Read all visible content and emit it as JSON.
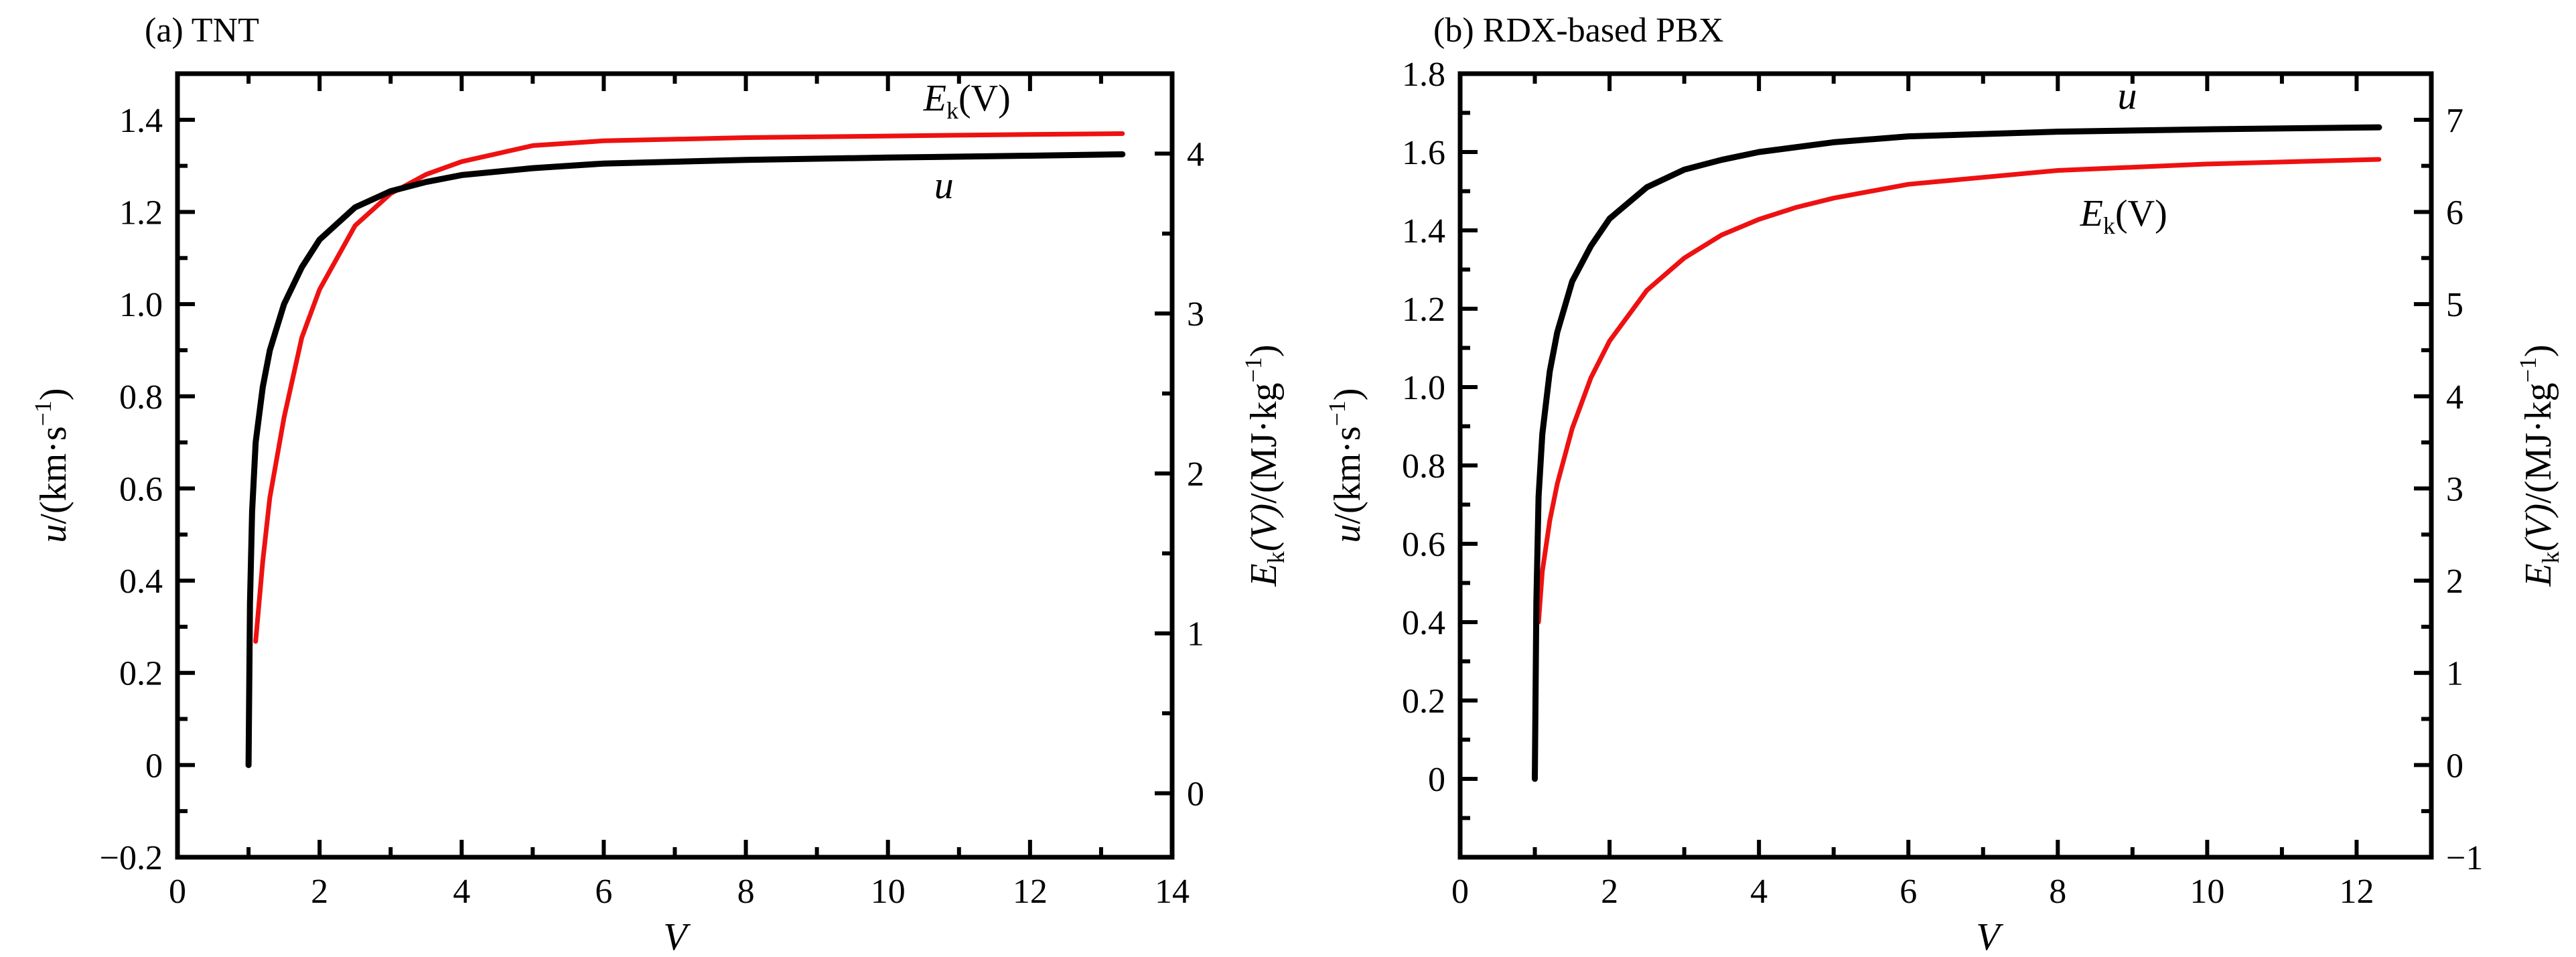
{
  "chart_data": [
    {
      "type": "line",
      "panel_label": "(a) TNT",
      "xlabel": "V",
      "y_left_label": {
        "main": "u",
        "rest": "/(km·s",
        "sup": "−1",
        "close": ")"
      },
      "y_right_label": {
        "main": "E",
        "sub": "k",
        "mid": "(V)",
        "rest": "/(MJ·kg",
        "sup": "−1",
        "close": ")"
      },
      "xlim": [
        0,
        14
      ],
      "ylim_left": [
        -0.2,
        1.5
      ],
      "ylim_right": [
        -0.4,
        4.5
      ],
      "x_ticks": [
        0,
        2,
        4,
        6,
        8,
        10,
        12,
        14
      ],
      "x_tick_labels": [
        "0",
        "2",
        "4",
        "6",
        "8",
        "10",
        "12",
        "14"
      ],
      "y_left_ticks": [
        -0.2,
        0,
        0.2,
        0.4,
        0.6,
        0.8,
        1.0,
        1.2,
        1.4
      ],
      "y_left_tick_labels": [
        "−0.2",
        "0",
        "0.2",
        "0.4",
        "0.6",
        "0.8",
        "1.0",
        "1.2",
        "1.4"
      ],
      "y_right_ticks": [
        0,
        1,
        2,
        3,
        4
      ],
      "y_right_tick_labels": [
        "0",
        "1",
        "2",
        "3",
        "4"
      ],
      "series": [
        {
          "name": "u",
          "axis": "left",
          "color": "#000000",
          "x": [
            1.0,
            1.02,
            1.05,
            1.1,
            1.2,
            1.3,
            1.5,
            1.75,
            2.0,
            2.5,
            3.0,
            3.5,
            4.0,
            5.0,
            6.0,
            8.0,
            10.0,
            12.0,
            13.3
          ],
          "y": [
            0.0,
            0.35,
            0.55,
            0.7,
            0.82,
            0.9,
            1.0,
            1.08,
            1.14,
            1.21,
            1.245,
            1.265,
            1.28,
            1.295,
            1.305,
            1.313,
            1.318,
            1.322,
            1.325
          ]
        },
        {
          "name": "Ek(V)",
          "axis": "right",
          "color": "#ee1111",
          "x": [
            1.1,
            1.2,
            1.3,
            1.5,
            1.75,
            2.0,
            2.5,
            3.0,
            3.5,
            4.0,
            4.5,
            5.0,
            6.0,
            8.0,
            10.0,
            12.0,
            13.3
          ],
          "y": [
            0.95,
            1.45,
            1.85,
            2.35,
            2.85,
            3.15,
            3.55,
            3.75,
            3.87,
            3.95,
            4.0,
            4.05,
            4.08,
            4.1,
            4.11,
            4.12,
            4.125
          ]
        }
      ],
      "annotations": [
        {
          "main": "E",
          "sub": "k",
          "rest": "(V)",
          "at": [
            10.5,
            4.27
          ],
          "axis": "right"
        },
        {
          "main": "u",
          "at": [
            10.65,
            1.23
          ],
          "axis": "left"
        }
      ]
    },
    {
      "type": "line",
      "panel_label": "(b) RDX-based PBX",
      "xlabel": "V",
      "y_left_label": {
        "main": "u",
        "rest": "/(km·s",
        "sup": "−1",
        "close": ")"
      },
      "y_right_label": {
        "main": "E",
        "sub": "k",
        "mid": "(V)",
        "rest": "/(MJ·kg",
        "sup": "−1",
        "close": ")"
      },
      "xlim": [
        0,
        13
      ],
      "ylim_left": [
        -0.2,
        1.8
      ],
      "ylim_right": [
        -1,
        7.5
      ],
      "x_ticks": [
        0,
        2,
        4,
        6,
        8,
        10,
        12
      ],
      "x_tick_labels": [
        "0",
        "2",
        "4",
        "6",
        "8",
        "10",
        "12"
      ],
      "y_left_ticks": [
        0,
        0.2,
        0.4,
        0.6,
        0.8,
        1.0,
        1.2,
        1.4,
        1.6,
        1.8
      ],
      "y_left_tick_labels": [
        "0",
        "0.2",
        "0.4",
        "0.6",
        "0.8",
        "1.0",
        "1.2",
        "1.4",
        "1.6",
        "1.8"
      ],
      "y_right_ticks": [
        -1,
        0,
        1,
        2,
        3,
        4,
        5,
        6,
        7
      ],
      "y_right_tick_labels": [
        "−1",
        "0",
        "1",
        "2",
        "3",
        "4",
        "5",
        "6",
        "7"
      ],
      "series": [
        {
          "name": "u",
          "axis": "left",
          "color": "#000000",
          "x": [
            1.0,
            1.02,
            1.05,
            1.1,
            1.2,
            1.3,
            1.5,
            1.75,
            2.0,
            2.5,
            3.0,
            3.5,
            4.0,
            5.0,
            6.0,
            8.0,
            10.0,
            12.3
          ],
          "y": [
            0.0,
            0.45,
            0.72,
            0.88,
            1.04,
            1.14,
            1.27,
            1.36,
            1.43,
            1.51,
            1.555,
            1.58,
            1.6,
            1.625,
            1.64,
            1.652,
            1.658,
            1.663
          ]
        },
        {
          "name": "Ek(V)",
          "axis": "right",
          "color": "#ee1111",
          "x": [
            1.05,
            1.1,
            1.2,
            1.3,
            1.5,
            1.75,
            2.0,
            2.5,
            3.0,
            3.5,
            4.0,
            4.5,
            5.0,
            6.0,
            8.0,
            10.0,
            12.3
          ],
          "y": [
            1.55,
            2.1,
            2.65,
            3.05,
            3.65,
            4.2,
            4.6,
            5.15,
            5.5,
            5.75,
            5.92,
            6.05,
            6.15,
            6.3,
            6.45,
            6.52,
            6.57
          ]
        }
      ],
      "annotations": [
        {
          "main": "u",
          "at": [
            8.8,
            1.71
          ],
          "axis": "left"
        },
        {
          "main": "E",
          "sub": "k",
          "rest": "(V)",
          "at": [
            8.3,
            5.85
          ],
          "axis": "right"
        }
      ]
    }
  ]
}
